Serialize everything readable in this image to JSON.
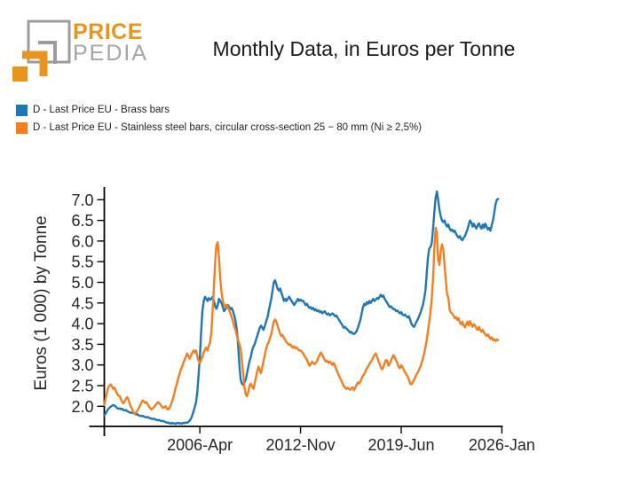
{
  "logo": {
    "brand_top": "PRICE",
    "brand_bottom": "PEDIA"
  },
  "title": "Monthly Data, in Euros per Tonne",
  "legend": [
    {
      "label": "D - Last Price EU - Brass bars",
      "color": "#1f77b4"
    },
    {
      "label": "D - Last Price EU - Stainless steel bars, circular cross-section 25 − 80 mm (Ni ≥ 2,5%)",
      "color": "#f57f20"
    }
  ],
  "chart_data": {
    "type": "line",
    "title": "Monthly Data, in Euros per Tonne",
    "ylabel": "Euros (1 000) by Tonne",
    "xlabel": "",
    "grid": false,
    "legend_position": "top-left",
    "x_unit": "month",
    "x_start": "2000-01",
    "x_end": "2025-10",
    "ylim": [
      1.5,
      7.3
    ],
    "y_tick_labels": [
      "2.0",
      "2.5",
      "3.0",
      "3.5",
      "4.0",
      "4.5",
      "5.0",
      "5.5",
      "6.0",
      "6.5",
      "7.0"
    ],
    "x_ticks": [
      {
        "label": "2006-Apr",
        "month": 75
      },
      {
        "label": "2012-Nov",
        "month": 154
      },
      {
        "label": "2019-Jun",
        "month": 233
      },
      {
        "label": "2026-Jan",
        "month": 312
      }
    ],
    "series": [
      {
        "name": "D - Last Price EU - Brass bars",
        "color": "#1f77b4",
        "values": [
          1.78,
          1.82,
          1.88,
          1.93,
          1.96,
          1.99,
          2.01,
          2.03,
          2.02,
          1.99,
          1.96,
          1.94,
          1.95,
          1.93,
          1.94,
          1.91,
          1.9,
          1.91,
          1.88,
          1.87,
          1.85,
          1.84,
          1.85,
          1.83,
          1.82,
          1.8,
          1.81,
          1.78,
          1.77,
          1.76,
          1.77,
          1.75,
          1.74,
          1.73,
          1.74,
          1.72,
          1.71,
          1.7,
          1.69,
          1.7,
          1.68,
          1.67,
          1.66,
          1.67,
          1.65,
          1.64,
          1.65,
          1.63,
          1.62,
          1.6,
          1.61,
          1.59,
          1.58,
          1.6,
          1.58,
          1.59,
          1.57,
          1.59,
          1.6,
          1.58,
          1.59,
          1.58,
          1.6,
          1.59,
          1.61,
          1.6,
          1.62,
          1.65,
          1.7,
          1.78,
          1.88,
          1.98,
          2.1,
          2.35,
          2.75,
          3.2,
          3.8,
          4.3,
          4.55,
          4.65,
          4.6,
          4.55,
          4.62,
          4.58,
          4.6,
          4.65,
          4.55,
          4.42,
          4.36,
          4.45,
          4.6,
          4.55,
          4.5,
          4.4,
          4.3,
          4.35,
          4.4,
          4.45,
          4.4,
          4.35,
          4.38,
          4.3,
          4.2,
          4.05,
          3.85,
          3.5,
          3.0,
          2.65,
          2.55,
          2.52,
          2.58,
          2.65,
          2.8,
          2.95,
          3.1,
          3.2,
          3.35,
          3.45,
          3.5,
          3.6,
          3.7,
          3.8,
          3.9,
          3.95,
          3.9,
          3.85,
          3.95,
          4.05,
          4.15,
          4.3,
          4.45,
          4.6,
          4.8,
          5.0,
          5.05,
          4.95,
          4.85,
          4.8,
          4.85,
          4.75,
          4.65,
          4.55,
          4.6,
          4.55,
          4.6,
          4.65,
          4.6,
          4.55,
          4.5,
          4.45,
          4.5,
          4.55,
          4.6,
          4.55,
          4.58,
          4.55,
          4.55,
          4.5,
          4.45,
          4.48,
          4.42,
          4.38,
          4.4,
          4.35,
          4.38,
          4.32,
          4.35,
          4.3,
          4.32,
          4.28,
          4.3,
          4.25,
          4.28,
          4.3,
          4.25,
          4.22,
          4.25,
          4.2,
          4.22,
          4.25,
          4.22,
          4.18,
          4.2,
          4.15,
          4.1,
          4.05,
          4.0,
          3.95,
          3.9,
          3.92,
          3.88,
          3.85,
          3.82,
          3.78,
          3.8,
          3.76,
          3.75,
          3.78,
          3.82,
          3.9,
          4.0,
          4.1,
          4.25,
          4.4,
          4.48,
          4.45,
          4.52,
          4.48,
          4.55,
          4.5,
          4.55,
          4.6,
          4.55,
          4.58,
          4.62,
          4.6,
          4.65,
          4.7,
          4.65,
          4.68,
          4.6,
          4.55,
          4.5,
          4.45,
          4.4,
          4.42,
          4.38,
          4.35,
          4.35,
          4.3,
          4.32,
          4.28,
          4.25,
          4.28,
          4.22,
          4.2,
          4.22,
          4.18,
          4.15,
          4.18,
          4.1,
          4.0,
          3.95,
          3.92,
          3.98,
          4.05,
          4.1,
          4.18,
          4.25,
          4.35,
          4.45,
          4.6,
          4.8,
          5.2,
          5.6,
          5.82,
          5.85,
          5.95,
          6.3,
          6.7,
          7.05,
          7.2,
          7.0,
          6.75,
          6.6,
          6.5,
          6.46,
          6.5,
          6.4,
          6.35,
          6.4,
          6.3,
          6.25,
          6.28,
          6.22,
          6.25,
          6.18,
          6.12,
          6.08,
          6.12,
          6.05,
          6.02,
          6.08,
          6.12,
          6.2,
          6.28,
          6.4,
          6.5,
          6.45,
          6.35,
          6.42,
          6.35,
          6.3,
          6.38,
          6.43,
          6.35,
          6.3,
          6.4,
          6.32,
          6.42,
          6.35,
          6.28,
          6.32,
          6.25,
          6.38,
          6.5,
          6.68,
          6.88,
          7.0,
          7.02
        ]
      },
      {
        "name": "D - Last Price EU - Stainless steel bars, circular cross-section 25 − 80 mm (Ni ≥ 2,5%)",
        "color": "#f57f20",
        "values": [
          2.03,
          2.18,
          2.32,
          2.45,
          2.5,
          2.53,
          2.48,
          2.42,
          2.45,
          2.38,
          2.3,
          2.26,
          2.25,
          2.18,
          2.1,
          2.07,
          2.12,
          2.18,
          2.22,
          2.15,
          2.05,
          1.98,
          1.92,
          1.85,
          1.82,
          1.85,
          1.9,
          1.95,
          2.02,
          2.08,
          2.14,
          2.12,
          2.08,
          2.1,
          2.05,
          2.0,
          1.95,
          1.92,
          1.95,
          1.98,
          2.02,
          2.06,
          2.1,
          2.08,
          2.04,
          2.0,
          1.96,
          1.98,
          2.0,
          1.95,
          1.92,
          1.95,
          2.02,
          2.1,
          2.2,
          2.32,
          2.45,
          2.55,
          2.68,
          2.78,
          2.88,
          2.95,
          3.05,
          3.12,
          3.2,
          3.28,
          3.22,
          3.15,
          3.22,
          3.3,
          3.35,
          3.3,
          3.35,
          3.2,
          3.1,
          3.05,
          3.12,
          3.2,
          3.3,
          3.38,
          3.42,
          3.35,
          3.45,
          3.55,
          3.8,
          4.3,
          4.9,
          5.5,
          5.9,
          5.97,
          5.6,
          5.1,
          4.75,
          4.55,
          4.45,
          4.4,
          4.46,
          4.4,
          4.32,
          4.25,
          4.15,
          4.05,
          3.92,
          3.85,
          3.71,
          3.6,
          3.5,
          3.4,
          3.1,
          2.8,
          2.45,
          2.28,
          2.24,
          2.35,
          2.5,
          2.55,
          2.48,
          2.42,
          2.55,
          2.7,
          2.85,
          2.96,
          2.88,
          2.8,
          2.95,
          3.1,
          3.25,
          3.4,
          3.5,
          3.55,
          3.65,
          3.75,
          3.9,
          4.05,
          4.1,
          4.05,
          3.95,
          3.85,
          3.75,
          3.7,
          3.72,
          3.65,
          3.6,
          3.55,
          3.52,
          3.48,
          3.5,
          3.45,
          3.42,
          3.45,
          3.4,
          3.42,
          3.38,
          3.35,
          3.35,
          3.32,
          3.28,
          3.22,
          3.18,
          3.12,
          3.05,
          2.98,
          3.02,
          3.08,
          3.05,
          3.02,
          3.05,
          3.1,
          3.18,
          3.25,
          3.3,
          3.25,
          3.18,
          3.12,
          3.08,
          3.1,
          3.05,
          3.08,
          3.05,
          3.0,
          3.05,
          2.98,
          2.9,
          2.82,
          2.75,
          2.68,
          2.62,
          2.55,
          2.48,
          2.45,
          2.42,
          2.45,
          2.42,
          2.4,
          2.44,
          2.46,
          2.39,
          2.45,
          2.52,
          2.58,
          2.55,
          2.6,
          2.68,
          2.74,
          2.78,
          2.85,
          2.92,
          2.96,
          3.02,
          3.07,
          3.12,
          3.18,
          3.24,
          3.28,
          3.2,
          3.1,
          3.03,
          2.95,
          2.89,
          2.95,
          3.05,
          3.12,
          3.1,
          2.98,
          3.03,
          3.1,
          3.18,
          3.24,
          3.18,
          3.1,
          3.05,
          2.95,
          2.92,
          3.0,
          2.95,
          2.88,
          2.82,
          2.78,
          2.72,
          2.65,
          2.55,
          2.53,
          2.58,
          2.64,
          2.7,
          2.78,
          2.82,
          2.89,
          2.96,
          3.05,
          3.15,
          3.28,
          3.42,
          3.6,
          3.82,
          4.05,
          4.3,
          4.6,
          5.1,
          5.8,
          6.32,
          6.2,
          5.55,
          5.42,
          5.75,
          5.92,
          5.8,
          5.42,
          5.06,
          4.7,
          4.63,
          4.34,
          4.27,
          4.24,
          4.2,
          4.13,
          4.16,
          4.09,
          4.13,
          4.02,
          3.98,
          4.05,
          3.95,
          3.91,
          3.98,
          4.05,
          3.95,
          4.06,
          3.99,
          3.92,
          3.99,
          3.95,
          3.88,
          3.85,
          3.92,
          3.85,
          3.8,
          3.85,
          3.78,
          3.74,
          3.7,
          3.74,
          3.68,
          3.63,
          3.67,
          3.6,
          3.62,
          3.58,
          3.62,
          3.6
        ]
      }
    ]
  }
}
